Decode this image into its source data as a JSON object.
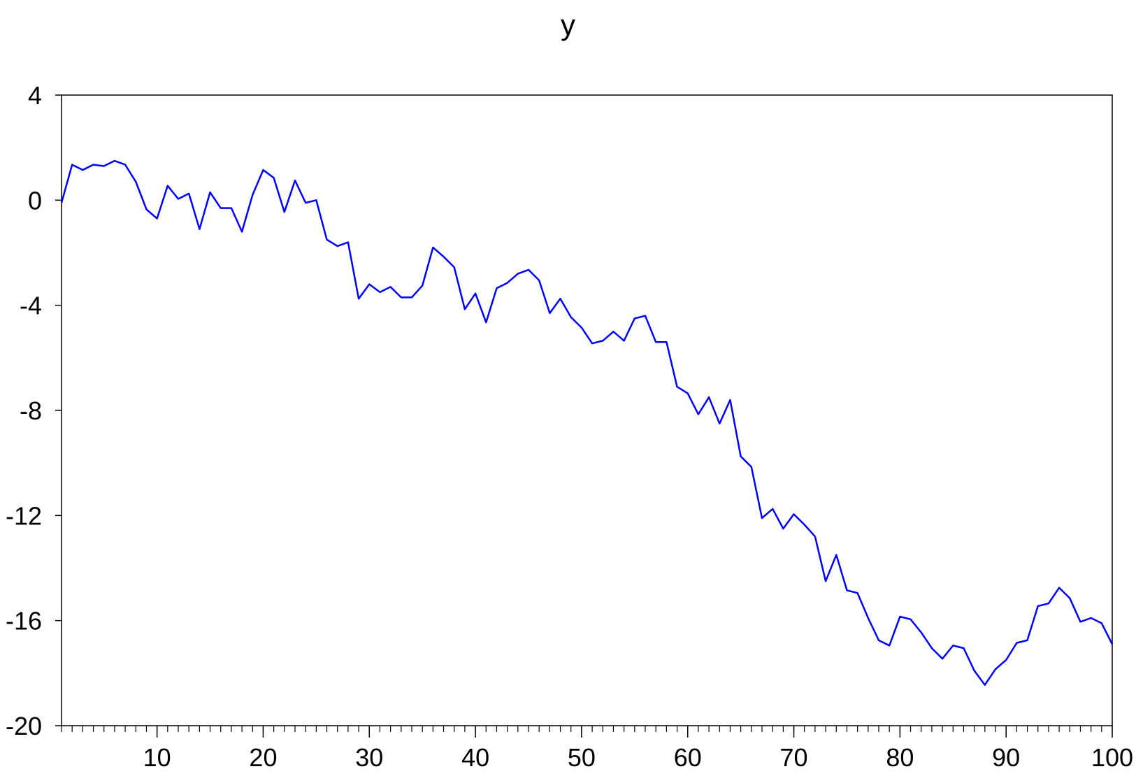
{
  "chart_data": {
    "type": "line",
    "title": "y",
    "xlabel": "",
    "ylabel": "",
    "xlim": [
      1,
      100
    ],
    "ylim": [
      -20,
      4
    ],
    "x_ticks": [
      10,
      20,
      30,
      40,
      50,
      60,
      70,
      80,
      90,
      100
    ],
    "x_tick_labels": [
      "10",
      "20",
      "30",
      "40",
      "50",
      "60",
      "70",
      "80",
      "90",
      "100"
    ],
    "y_ticks": [
      4,
      0,
      -4,
      -8,
      -12,
      -16,
      -20
    ],
    "y_tick_labels": [
      "4",
      "0",
      "-4",
      "-8",
      "-12",
      "-16",
      "-20"
    ],
    "grid": false,
    "series": [
      {
        "color": "#0000ff",
        "x": [
          1,
          2,
          3,
          4,
          5,
          6,
          7,
          8,
          9,
          10,
          11,
          12,
          13,
          14,
          15,
          16,
          17,
          18,
          19,
          20,
          21,
          22,
          23,
          24,
          25,
          26,
          27,
          28,
          29,
          30,
          31,
          32,
          33,
          34,
          35,
          36,
          37,
          38,
          39,
          40,
          41,
          42,
          43,
          44,
          45,
          46,
          47,
          48,
          49,
          50,
          51,
          52,
          53,
          54,
          55,
          56,
          57,
          58,
          59,
          60,
          61,
          62,
          63,
          64,
          65,
          66,
          67,
          68,
          69,
          70,
          71,
          72,
          73,
          74,
          75,
          76,
          77,
          78,
          79,
          80,
          81,
          82,
          83,
          84,
          85,
          86,
          87,
          88,
          89,
          90,
          91,
          92,
          93,
          94,
          95,
          96,
          97,
          98,
          99,
          100
        ],
        "y": [
          -0.1,
          1.35,
          1.15,
          1.35,
          1.3,
          1.5,
          1.35,
          0.7,
          -0.35,
          -0.7,
          0.55,
          0.05,
          0.25,
          -1.1,
          0.3,
          -0.3,
          -0.3,
          -1.2,
          0.2,
          1.15,
          0.85,
          -0.45,
          0.75,
          -0.1,
          0.0,
          -1.5,
          -1.75,
          -1.6,
          -3.75,
          -3.2,
          -3.5,
          -3.3,
          -3.7,
          -3.7,
          -3.25,
          -1.8,
          -2.15,
          -2.55,
          -4.15,
          -3.55,
          -4.65,
          -3.35,
          -3.15,
          -2.8,
          -2.65,
          -3.05,
          -4.3,
          -3.75,
          -4.45,
          -4.85,
          -5.45,
          -5.35,
          -5.0,
          -5.35,
          -4.5,
          -4.4,
          -5.4,
          -5.4,
          -7.1,
          -7.35,
          -8.15,
          -7.5,
          -8.5,
          -7.6,
          -9.75,
          -10.15,
          -12.1,
          -11.75,
          -12.5,
          -11.95,
          -12.35,
          -12.8,
          -14.5,
          -13.5,
          -14.85,
          -14.95,
          -15.9,
          -16.75,
          -16.95,
          -15.85,
          -15.95,
          -16.45,
          -17.05,
          -17.45,
          -16.95,
          -17.05,
          -17.9,
          -18.45,
          -17.85,
          -17.5,
          -16.85,
          -16.75,
          -15.45,
          -15.35,
          -14.75,
          -15.15,
          -16.05,
          -15.9,
          -16.1,
          -16.9
        ]
      }
    ]
  }
}
